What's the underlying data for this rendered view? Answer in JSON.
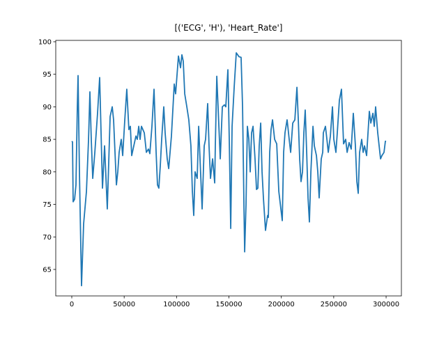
{
  "chart_data": {
    "type": "line",
    "title": "[('ECG', 'H'), 'Heart_Rate']",
    "color": "#1f77b4",
    "x": [
      0,
      700,
      1300,
      2700,
      4000,
      5300,
      6000,
      7300,
      9300,
      11300,
      14000,
      16000,
      17300,
      18600,
      20000,
      22000,
      24600,
      26600,
      29300,
      31300,
      33900,
      36600,
      38600,
      39900,
      42600,
      43900,
      45200,
      47200,
      48600,
      50600,
      52500,
      54500,
      55900,
      57200,
      59200,
      61200,
      62500,
      63900,
      65200,
      66500,
      69200,
      71200,
      73200,
      74500,
      76500,
      78500,
      80500,
      81800,
      83100,
      84500,
      85800,
      87800,
      89100,
      91100,
      92500,
      93800,
      95100,
      97800,
      99100,
      101800,
      103800,
      105100,
      106400,
      107800,
      109800,
      111700,
      113700,
      115100,
      116400,
      117700,
      119700,
      121100,
      124400,
      126400,
      127700,
      129700,
      131000,
      132400,
      134400,
      136400,
      137000,
      138400,
      140400,
      141700,
      143700,
      145700,
      147000,
      149000,
      150300,
      151700,
      153000,
      155000,
      157000,
      159600,
      161600,
      163000,
      164300,
      165000,
      166300,
      167600,
      169000,
      170300,
      171600,
      173000,
      174900,
      176300,
      177600,
      178900,
      180300,
      181600,
      182900,
      184900,
      186900,
      187600,
      188900,
      190200,
      191600,
      193600,
      195600,
      197600,
      200900,
      202200,
      203500,
      205500,
      206200,
      207500,
      208900,
      210900,
      212900,
      214900,
      216200,
      217500,
      218800,
      220200,
      221500,
      222800,
      224200,
      225500,
      226800,
      228200,
      230200,
      231500,
      233500,
      234800,
      236100,
      238100,
      239500,
      240100,
      242100,
      243500,
      244800,
      246800,
      248800,
      250100,
      252100,
      253400,
      255400,
      257400,
      259400,
      261400,
      262800,
      264700,
      266700,
      268700,
      270700,
      272100,
      273400,
      274700,
      276700,
      278100,
      279400,
      281400,
      284000,
      285400,
      287400,
      288700,
      290000,
      292000,
      294700,
      296000,
      298000,
      299300,
      300000
    ],
    "values": [
      84.7,
      84.6,
      75.4,
      75.8,
      78,
      90,
      94.8,
      80,
      62.5,
      72,
      77,
      85,
      92.3,
      85,
      79,
      83,
      89,
      94.5,
      77.5,
      84,
      74.3,
      88.5,
      90,
      88,
      78,
      80,
      83,
      85,
      82.5,
      88,
      92.7,
      86.5,
      87,
      82.5,
      84,
      85.5,
      85,
      87,
      85,
      87,
      86,
      83,
      83.5,
      82.8,
      87,
      92.7,
      83,
      78,
      77.5,
      81,
      85,
      90,
      86,
      82,
      80.5,
      83,
      85.5,
      93.5,
      92,
      97.8,
      96,
      98,
      97,
      92,
      90,
      88,
      84,
      77,
      73.3,
      80,
      79,
      87,
      74.3,
      84,
      85,
      90.5,
      84,
      79,
      82,
      78.3,
      84,
      94.7,
      87,
      82,
      90,
      90.3,
      90,
      95.7,
      85,
      71.3,
      87,
      93,
      98.3,
      97.7,
      97.6,
      90,
      75,
      67.7,
      75,
      87,
      85,
      80,
      86,
      87,
      82,
      77.3,
      77.5,
      84,
      87.5,
      80,
      76,
      71,
      73.3,
      73,
      83,
      86.5,
      88,
      85,
      84.3,
      77,
      72.5,
      83,
      86,
      88,
      87,
      85,
      83,
      87.5,
      88,
      93,
      88,
      82,
      78.5,
      80,
      86,
      89.5,
      83,
      76,
      72.3,
      80,
      87,
      84,
      82.5,
      80,
      76,
      82,
      83,
      86,
      87,
      85,
      83,
      85.5,
      90,
      85,
      83,
      86,
      91,
      92.7,
      84.3,
      85,
      83,
      84.5,
      83.5,
      89,
      84,
      78.5,
      76.7,
      83,
      85,
      83,
      84,
      82.5,
      89.3,
      87.5,
      89,
      87,
      90,
      86,
      82,
      82.5,
      83,
      84.7,
      84.7
    ],
    "xlim": [
      -15300,
      314600
    ],
    "ylim": [
      60.93,
      100.21
    ],
    "xticks": [
      0,
      50000,
      100000,
      150000,
      200000,
      250000,
      300000
    ],
    "yticks": [
      65,
      70,
      75,
      80,
      85,
      90,
      95,
      100
    ]
  }
}
